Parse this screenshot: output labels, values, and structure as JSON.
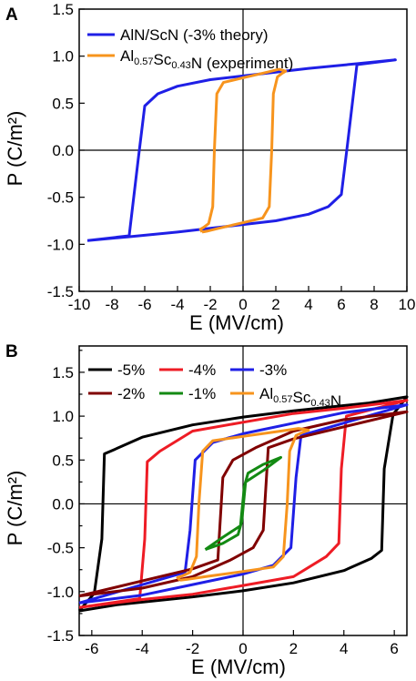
{
  "chart_data": [
    {
      "panel": "A",
      "type": "line",
      "xlabel": "E (MV/cm)",
      "ylabel": "P (C/m²)",
      "xlim": [
        -10,
        10
      ],
      "ylim": [
        -1.5,
        1.5
      ],
      "xticks": [
        -10,
        -8,
        -6,
        -4,
        -2,
        0,
        2,
        4,
        6,
        8,
        10
      ],
      "yticks": [
        -1.5,
        -1.0,
        -0.5,
        0.0,
        0.5,
        1.0,
        1.5
      ],
      "xtick_labels": [
        "-10",
        "-8",
        "-6",
        "-4",
        "-2",
        "0",
        "2",
        "4",
        "6",
        "8",
        "10"
      ],
      "ytick_labels": [
        "-1.5",
        "-1.0",
        "-0.5",
        "0.0",
        "0.5",
        "1.0",
        "1.5"
      ],
      "legend_position": "top-left",
      "series": [
        {
          "name": "AlN/ScN (-3% theory)",
          "color": "#1f1fe6",
          "points": [
            [
              -9.5,
              -0.96
            ],
            [
              -7,
              -0.92
            ],
            [
              -4,
              -0.87
            ],
            [
              0,
              -0.79
            ],
            [
              2,
              -0.75
            ],
            [
              4,
              -0.68
            ],
            [
              5.2,
              -0.6
            ],
            [
              6,
              -0.47
            ],
            [
              6.4,
              0.1
            ],
            [
              6.95,
              0.91
            ],
            [
              9.3,
              0.96
            ],
            [
              7,
              0.92
            ],
            [
              4,
              0.87
            ],
            [
              0,
              0.79
            ],
            [
              -2,
              0.75
            ],
            [
              -4,
              0.68
            ],
            [
              -5.2,
              0.6
            ],
            [
              -6,
              0.47
            ],
            [
              -6.4,
              -0.1
            ],
            [
              -6.95,
              -0.91
            ],
            [
              -9.5,
              -0.96
            ]
          ]
        },
        {
          "name": "Al0.57Sc0.43N (experiment)",
          "name_parts": {
            "base": "Al",
            "sub1": "0.57",
            "mid": "Sc",
            "sub2": "0.43",
            "tail": "N (experiment)"
          },
          "color": "#f7941d",
          "points": [
            [
              -2.5,
              -0.87
            ],
            [
              -2.2,
              -0.86
            ],
            [
              -1.5,
              -0.83
            ],
            [
              0,
              -0.77
            ],
            [
              1.2,
              -0.72
            ],
            [
              1.6,
              -0.6
            ],
            [
              1.75,
              0.0
            ],
            [
              1.85,
              0.6
            ],
            [
              2.1,
              0.78
            ],
            [
              2.4,
              0.82
            ],
            [
              2.6,
              0.84
            ],
            [
              2.2,
              0.86
            ],
            [
              1.5,
              0.83
            ],
            [
              0,
              0.77
            ],
            [
              -1.2,
              0.72
            ],
            [
              -1.6,
              0.6
            ],
            [
              -1.75,
              0.0
            ],
            [
              -1.85,
              -0.6
            ],
            [
              -2.1,
              -0.78
            ],
            [
              -2.4,
              -0.82
            ],
            [
              -2.6,
              -0.84
            ],
            [
              -2.5,
              -0.87
            ]
          ]
        }
      ]
    },
    {
      "panel": "B",
      "type": "line",
      "xlabel": "E (MV/cm)",
      "ylabel": "P (C/m²)",
      "xlim": [
        -6.5,
        6.5
      ],
      "ylim": [
        -1.5,
        1.8
      ],
      "xticks": [
        -6,
        -4,
        -2,
        0,
        2,
        4,
        6
      ],
      "yticks": [
        -1.5,
        -1.25,
        -1.0,
        -0.75,
        -0.5,
        -0.25,
        0.0,
        0.25,
        0.5,
        0.75,
        1.0,
        1.25,
        1.5,
        1.75
      ],
      "xtick_labels": [
        "-6",
        "-4",
        "-2",
        "0",
        "2",
        "4",
        "6"
      ],
      "ytick_labels": [
        "-1.5",
        "",
        "-1.0",
        "",
        "-0.5",
        "",
        "0.0",
        "",
        "0.5",
        "",
        "1.0",
        "",
        "1.5",
        ""
      ],
      "legend_position": "top",
      "series": [
        {
          "name": "-5%",
          "color": "#000000",
          "points": [
            [
              -6.5,
              -1.22
            ],
            [
              -5,
              -1.15
            ],
            [
              -2,
              -1.06
            ],
            [
              0,
              -0.99
            ],
            [
              2,
              -0.9
            ],
            [
              4,
              -0.76
            ],
            [
              5.1,
              -0.62
            ],
            [
              5.5,
              -0.53
            ],
            [
              5.6,
              0.4
            ],
            [
              5.95,
              1.02
            ],
            [
              6.5,
              1.22
            ],
            [
              5,
              1.15
            ],
            [
              2,
              1.06
            ],
            [
              0,
              0.99
            ],
            [
              -2,
              0.9
            ],
            [
              -4,
              0.76
            ],
            [
              -5.1,
              0.62
            ],
            [
              -5.5,
              0.57
            ],
            [
              -5.6,
              -0.4
            ],
            [
              -5.9,
              -1.02
            ],
            [
              -6.5,
              -1.22
            ]
          ]
        },
        {
          "name": "-4%",
          "color": "#ee1c25",
          "points": [
            [
              -6.5,
              -1.18
            ],
            [
              -4,
              -1.09
            ],
            [
              -2,
              -1.03
            ],
            [
              0,
              -0.93
            ],
            [
              2,
              -0.83
            ],
            [
              3.3,
              -0.6
            ],
            [
              3.8,
              -0.45
            ],
            [
              3.9,
              0.4
            ],
            [
              4.1,
              1.0
            ],
            [
              6.5,
              1.18
            ],
            [
              4,
              1.09
            ],
            [
              2,
              1.03
            ],
            [
              0,
              0.93
            ],
            [
              -2,
              0.83
            ],
            [
              -3.3,
              0.6
            ],
            [
              -3.8,
              0.48
            ],
            [
              -3.9,
              -0.4
            ],
            [
              -4.1,
              -1.08
            ],
            [
              -6.5,
              -1.18
            ]
          ]
        },
        {
          "name": "-3%",
          "color": "#1f1fe6",
          "points": [
            [
              -6.5,
              -1.13
            ],
            [
              -4,
              -1.04
            ],
            [
              -2,
              -0.92
            ],
            [
              0,
              -0.8
            ],
            [
              1.2,
              -0.7
            ],
            [
              1.9,
              -0.5
            ],
            [
              2.1,
              0.3
            ],
            [
              2.3,
              0.78
            ],
            [
              6.5,
              1.13
            ],
            [
              4,
              1.04
            ],
            [
              2,
              0.92
            ],
            [
              0,
              0.8
            ],
            [
              -1.2,
              0.7
            ],
            [
              -1.9,
              0.5
            ],
            [
              -2.1,
              -0.3
            ],
            [
              -2.3,
              -0.78
            ],
            [
              -6.5,
              -1.13
            ]
          ]
        },
        {
          "name": "-2%",
          "color": "#800000",
          "points": [
            [
              -6.5,
              -1.05
            ],
            [
              -4,
              -0.96
            ],
            [
              -2,
              -0.83
            ],
            [
              -0.5,
              -0.64
            ],
            [
              0.4,
              -0.5
            ],
            [
              0.8,
              -0.3
            ],
            [
              1.0,
              0.64
            ],
            [
              2,
              0.74
            ],
            [
              6.5,
              1.05
            ],
            [
              4,
              0.96
            ],
            [
              2,
              0.83
            ],
            [
              0.5,
              0.64
            ],
            [
              -0.4,
              0.5
            ],
            [
              -0.8,
              0.3
            ],
            [
              -1.0,
              -0.64
            ],
            [
              -2,
              -0.74
            ],
            [
              -6.5,
              -1.05
            ]
          ]
        },
        {
          "name": "-1%",
          "color": "#138a13",
          "points": [
            [
              -1.5,
              -0.52
            ],
            [
              -0.8,
              -0.38
            ],
            [
              -0.1,
              -0.25
            ],
            [
              0.05,
              0.2
            ],
            [
              0.2,
              0.35
            ],
            [
              0.8,
              0.45
            ],
            [
              1.5,
              0.53
            ],
            [
              0.8,
              0.38
            ],
            [
              0.1,
              0.25
            ],
            [
              -0.05,
              -0.2
            ],
            [
              -0.2,
              -0.35
            ],
            [
              -0.8,
              -0.45
            ],
            [
              -1.5,
              -0.52
            ]
          ]
        },
        {
          "name": "Al0.57Sc0.43N",
          "name_parts": {
            "base": "Al",
            "sub1": "0.57",
            "mid": "Sc",
            "sub2": "0.43",
            "tail": "N"
          },
          "color": "#f7941d",
          "points": [
            [
              -2.5,
              -0.87
            ],
            [
              -2.2,
              -0.86
            ],
            [
              -1.5,
              -0.83
            ],
            [
              0,
              -0.77
            ],
            [
              1.2,
              -0.72
            ],
            [
              1.6,
              -0.6
            ],
            [
              1.75,
              0.0
            ],
            [
              1.85,
              0.6
            ],
            [
              2.1,
              0.78
            ],
            [
              2.4,
              0.82
            ],
            [
              2.6,
              0.84
            ],
            [
              2.2,
              0.86
            ],
            [
              1.5,
              0.83
            ],
            [
              0,
              0.77
            ],
            [
              -1.2,
              0.72
            ],
            [
              -1.6,
              0.6
            ],
            [
              -1.75,
              0.0
            ],
            [
              -1.85,
              -0.6
            ],
            [
              -2.1,
              -0.78
            ],
            [
              -2.4,
              -0.82
            ],
            [
              -2.6,
              -0.84
            ],
            [
              -2.5,
              -0.87
            ]
          ]
        }
      ]
    }
  ]
}
